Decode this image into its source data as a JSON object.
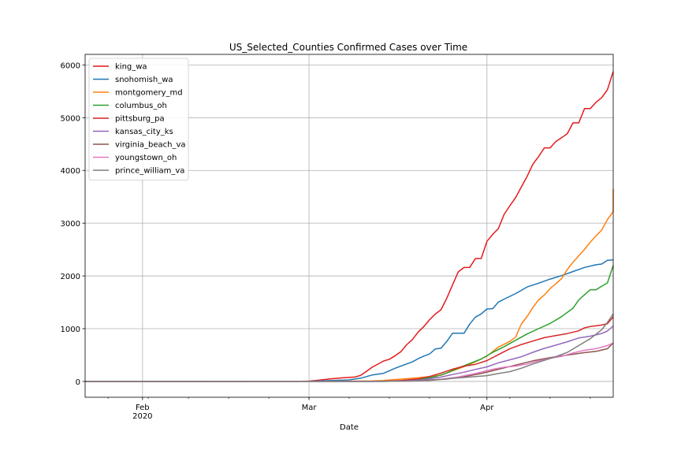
{
  "chart_data": {
    "type": "line",
    "title": "US_Selected_Counties Confirmed Cases over Time",
    "xlabel": "Date",
    "ylabel": "",
    "xlim": [
      "2020-01-22",
      "2020-04-23"
    ],
    "ylim": [
      -300,
      6200
    ],
    "x_ticks": [
      {
        "date": "2020-02-01",
        "label": "Feb",
        "sublabel": "2020"
      },
      {
        "date": "2020-03-01",
        "label": "Mar",
        "sublabel": ""
      },
      {
        "date": "2020-04-01",
        "label": "Apr",
        "sublabel": ""
      }
    ],
    "y_ticks": [
      0,
      1000,
      2000,
      3000,
      4000,
      5000,
      6000
    ],
    "grid": true,
    "legend": "top-left",
    "series": [
      {
        "name": "king_wa",
        "color": "#e41a1c",
        "points": [
          [
            "2020-01-22",
            0
          ],
          [
            "2020-02-28",
            1
          ],
          [
            "2020-03-01",
            6
          ],
          [
            "2020-03-03",
            27
          ],
          [
            "2020-03-05",
            51
          ],
          [
            "2020-03-07",
            71
          ],
          [
            "2020-03-09",
            83
          ],
          [
            "2020-03-10",
            116
          ],
          [
            "2020-03-11",
            190
          ],
          [
            "2020-03-12",
            270
          ],
          [
            "2020-03-13",
            328
          ],
          [
            "2020-03-14",
            388
          ],
          [
            "2020-03-15",
            420
          ],
          [
            "2020-03-16",
            488
          ],
          [
            "2020-03-17",
            562
          ],
          [
            "2020-03-18",
            693
          ],
          [
            "2020-03-19",
            793
          ],
          [
            "2020-03-20",
            934
          ],
          [
            "2020-03-21",
            1040
          ],
          [
            "2020-03-22",
            1170
          ],
          [
            "2020-03-23",
            1277
          ],
          [
            "2020-03-24",
            1359
          ],
          [
            "2020-03-25",
            1577
          ],
          [
            "2020-03-26",
            1828
          ],
          [
            "2020-03-27",
            2077
          ],
          [
            "2020-03-28",
            2159
          ],
          [
            "2020-03-29",
            2161
          ],
          [
            "2020-03-30",
            2330
          ],
          [
            "2020-03-31",
            2330
          ],
          [
            "2020-04-01",
            2656
          ],
          [
            "2020-04-02",
            2787
          ],
          [
            "2020-04-03",
            2898
          ],
          [
            "2020-04-04",
            3167
          ],
          [
            "2020-04-05",
            3331
          ],
          [
            "2020-04-06",
            3486
          ],
          [
            "2020-04-07",
            3688
          ],
          [
            "2020-04-08",
            3889
          ],
          [
            "2020-04-09",
            4117
          ],
          [
            "2020-04-10",
            4262
          ],
          [
            "2020-04-11",
            4428
          ],
          [
            "2020-04-12",
            4428
          ],
          [
            "2020-04-13",
            4549
          ],
          [
            "2020-04-14",
            4620
          ],
          [
            "2020-04-15",
            4697
          ],
          [
            "2020-04-16",
            4902
          ],
          [
            "2020-04-17",
            4902
          ],
          [
            "2020-04-18",
            5174
          ],
          [
            "2020-04-19",
            5174
          ],
          [
            "2020-04-20",
            5293
          ],
          [
            "2020-04-21",
            5379
          ],
          [
            "2020-04-22",
            5532
          ],
          [
            "2020-04-23",
            5876
          ]
        ]
      },
      {
        "name": "snohomish_wa",
        "color": "#1f77b4",
        "points": [
          [
            "2020-01-22",
            0
          ],
          [
            "2020-03-01",
            2
          ],
          [
            "2020-03-05",
            18
          ],
          [
            "2020-03-08",
            28
          ],
          [
            "2020-03-10",
            62
          ],
          [
            "2020-03-12",
            121
          ],
          [
            "2020-03-14",
            154
          ],
          [
            "2020-03-16",
            250
          ],
          [
            "2020-03-18",
            330
          ],
          [
            "2020-03-19",
            370
          ],
          [
            "2020-03-20",
            430
          ],
          [
            "2020-03-21",
            480
          ],
          [
            "2020-03-22",
            520
          ],
          [
            "2020-03-23",
            614
          ],
          [
            "2020-03-24",
            630
          ],
          [
            "2020-03-25",
            757
          ],
          [
            "2020-03-26",
            914
          ],
          [
            "2020-03-27",
            914
          ],
          [
            "2020-03-28",
            914
          ],
          [
            "2020-03-29",
            1086
          ],
          [
            "2020-03-30",
            1220
          ],
          [
            "2020-03-31",
            1280
          ],
          [
            "2020-04-01",
            1374
          ],
          [
            "2020-04-02",
            1380
          ],
          [
            "2020-04-03",
            1503
          ],
          [
            "2020-04-04",
            1560
          ],
          [
            "2020-04-06",
            1665
          ],
          [
            "2020-04-08",
            1790
          ],
          [
            "2020-04-10",
            1862
          ],
          [
            "2020-04-12",
            1940
          ],
          [
            "2020-04-14",
            2005
          ],
          [
            "2020-04-16",
            2083
          ],
          [
            "2020-04-18",
            2161
          ],
          [
            "2020-04-20",
            2212
          ],
          [
            "2020-04-21",
            2226
          ],
          [
            "2020-04-22",
            2295
          ],
          [
            "2020-04-23",
            2305
          ]
        ]
      },
      {
        "name": "montgomery_md",
        "color": "#ff7f0e",
        "points": [
          [
            "2020-01-22",
            0
          ],
          [
            "2020-03-05",
            2
          ],
          [
            "2020-03-12",
            9
          ],
          [
            "2020-03-14",
            19
          ],
          [
            "2020-03-16",
            36
          ],
          [
            "2020-03-18",
            51
          ],
          [
            "2020-03-20",
            71
          ],
          [
            "2020-03-22",
            93
          ],
          [
            "2020-03-24",
            118
          ],
          [
            "2020-03-26",
            200
          ],
          [
            "2020-03-28",
            280
          ],
          [
            "2020-03-30",
            372
          ],
          [
            "2020-04-01",
            480
          ],
          [
            "2020-04-03",
            650
          ],
          [
            "2020-04-05",
            760
          ],
          [
            "2020-04-06",
            840
          ],
          [
            "2020-04-07",
            1090
          ],
          [
            "2020-04-08",
            1231
          ],
          [
            "2020-04-09",
            1400
          ],
          [
            "2020-04-10",
            1545
          ],
          [
            "2020-04-11",
            1640
          ],
          [
            "2020-04-12",
            1760
          ],
          [
            "2020-04-13",
            1850
          ],
          [
            "2020-04-14",
            1950
          ],
          [
            "2020-04-15",
            2120
          ],
          [
            "2020-04-16",
            2260
          ],
          [
            "2020-04-17",
            2383
          ],
          [
            "2020-04-18",
            2503
          ],
          [
            "2020-04-19",
            2640
          ],
          [
            "2020-04-20",
            2760
          ],
          [
            "2020-04-21",
            2870
          ],
          [
            "2020-04-22",
            3070
          ],
          [
            "2020-04-23",
            3220
          ],
          [
            "2020-04-23",
            3650
          ]
        ]
      },
      {
        "name": "columbus_oh",
        "color": "#2ca02c",
        "points": [
          [
            "2020-01-22",
            0
          ],
          [
            "2020-03-11",
            1
          ],
          [
            "2020-03-16",
            8
          ],
          [
            "2020-03-19",
            28
          ],
          [
            "2020-03-21",
            52
          ],
          [
            "2020-03-23",
            91
          ],
          [
            "2020-03-25",
            158
          ],
          [
            "2020-03-27",
            253
          ],
          [
            "2020-03-29",
            340
          ],
          [
            "2020-03-31",
            425
          ],
          [
            "2020-04-02",
            550
          ],
          [
            "2020-04-04",
            660
          ],
          [
            "2020-04-06",
            780
          ],
          [
            "2020-04-08",
            900
          ],
          [
            "2020-04-10",
            1000
          ],
          [
            "2020-04-12",
            1098
          ],
          [
            "2020-04-14",
            1228
          ],
          [
            "2020-04-16",
            1388
          ],
          [
            "2020-04-17",
            1545
          ],
          [
            "2020-04-18",
            1644
          ],
          [
            "2020-04-19",
            1738
          ],
          [
            "2020-04-20",
            1738
          ],
          [
            "2020-04-21",
            1806
          ],
          [
            "2020-04-22",
            1868
          ],
          [
            "2020-04-23",
            2200
          ]
        ]
      },
      {
        "name": "pittsburg_pa",
        "color": "#d62728",
        "points": [
          [
            "2020-01-22",
            0
          ],
          [
            "2020-03-14",
            3
          ],
          [
            "2020-03-17",
            17
          ],
          [
            "2020-03-20",
            48
          ],
          [
            "2020-03-22",
            93
          ],
          [
            "2020-03-24",
            158
          ],
          [
            "2020-03-26",
            230
          ],
          [
            "2020-03-28",
            290
          ],
          [
            "2020-03-30",
            325
          ],
          [
            "2020-04-01",
            395
          ],
          [
            "2020-04-03",
            508
          ],
          [
            "2020-04-05",
            620
          ],
          [
            "2020-04-07",
            700
          ],
          [
            "2020-04-09",
            765
          ],
          [
            "2020-04-11",
            830
          ],
          [
            "2020-04-13",
            868
          ],
          [
            "2020-04-15",
            908
          ],
          [
            "2020-04-17",
            960
          ],
          [
            "2020-04-18",
            1017
          ],
          [
            "2020-04-19",
            1040
          ],
          [
            "2020-04-21",
            1068
          ],
          [
            "2020-04-22",
            1095
          ],
          [
            "2020-04-23",
            1222
          ]
        ]
      },
      {
        "name": "kansas_city_ks",
        "color": "#9467bd",
        "points": [
          [
            "2020-01-22",
            0
          ],
          [
            "2020-03-14",
            1
          ],
          [
            "2020-03-18",
            12
          ],
          [
            "2020-03-21",
            35
          ],
          [
            "2020-03-24",
            82
          ],
          [
            "2020-03-26",
            130
          ],
          [
            "2020-03-28",
            175
          ],
          [
            "2020-03-30",
            228
          ],
          [
            "2020-04-01",
            275
          ],
          [
            "2020-04-03",
            353
          ],
          [
            "2020-04-05",
            410
          ],
          [
            "2020-04-07",
            468
          ],
          [
            "2020-04-09",
            551
          ],
          [
            "2020-04-11",
            626
          ],
          [
            "2020-04-13",
            687
          ],
          [
            "2020-04-15",
            752
          ],
          [
            "2020-04-17",
            823
          ],
          [
            "2020-04-19",
            858
          ],
          [
            "2020-04-21",
            909
          ],
          [
            "2020-04-22",
            955
          ],
          [
            "2020-04-23",
            1052
          ]
        ]
      },
      {
        "name": "virginia_beach_va",
        "color": "#8c564b",
        "points": [
          [
            "2020-01-22",
            0
          ],
          [
            "2020-03-12",
            1
          ],
          [
            "2020-03-19",
            8
          ],
          [
            "2020-03-22",
            20
          ],
          [
            "2020-03-25",
            45
          ],
          [
            "2020-03-28",
            90
          ],
          [
            "2020-03-31",
            150
          ],
          [
            "2020-04-03",
            230
          ],
          [
            "2020-04-06",
            310
          ],
          [
            "2020-04-09",
            390
          ],
          [
            "2020-04-12",
            450
          ],
          [
            "2020-04-15",
            500
          ],
          [
            "2020-04-18",
            545
          ],
          [
            "2020-04-20",
            570
          ],
          [
            "2020-04-22",
            620
          ],
          [
            "2020-04-23",
            730
          ]
        ]
      },
      {
        "name": "youngstown_oh",
        "color": "#e377c2",
        "points": [
          [
            "2020-01-22",
            0
          ],
          [
            "2020-03-14",
            1
          ],
          [
            "2020-03-20",
            12
          ],
          [
            "2020-03-24",
            40
          ],
          [
            "2020-03-27",
            85
          ],
          [
            "2020-03-30",
            150
          ],
          [
            "2020-04-02",
            230
          ],
          [
            "2020-04-04",
            270
          ],
          [
            "2020-04-06",
            290
          ],
          [
            "2020-04-08",
            330
          ],
          [
            "2020-04-10",
            390
          ],
          [
            "2020-04-12",
            440
          ],
          [
            "2020-04-14",
            475
          ],
          [
            "2020-04-16",
            540
          ],
          [
            "2020-04-18",
            590
          ],
          [
            "2020-04-20",
            620
          ],
          [
            "2020-04-22",
            680
          ],
          [
            "2020-04-23",
            730
          ]
        ]
      },
      {
        "name": "prince_william_va",
        "color": "#7f7f7f",
        "points": [
          [
            "2020-01-22",
            0
          ],
          [
            "2020-03-14",
            1
          ],
          [
            "2020-03-20",
            15
          ],
          [
            "2020-03-24",
            40
          ],
          [
            "2020-03-28",
            75
          ],
          [
            "2020-04-01",
            110
          ],
          [
            "2020-04-03",
            150
          ],
          [
            "2020-04-05",
            185
          ],
          [
            "2020-04-07",
            250
          ],
          [
            "2020-04-09",
            330
          ],
          [
            "2020-04-11",
            400
          ],
          [
            "2020-04-13",
            470
          ],
          [
            "2020-04-15",
            550
          ],
          [
            "2020-04-17",
            680
          ],
          [
            "2020-04-19",
            810
          ],
          [
            "2020-04-21",
            980
          ],
          [
            "2020-04-22",
            1120
          ],
          [
            "2020-04-23",
            1280
          ]
        ]
      }
    ]
  }
}
